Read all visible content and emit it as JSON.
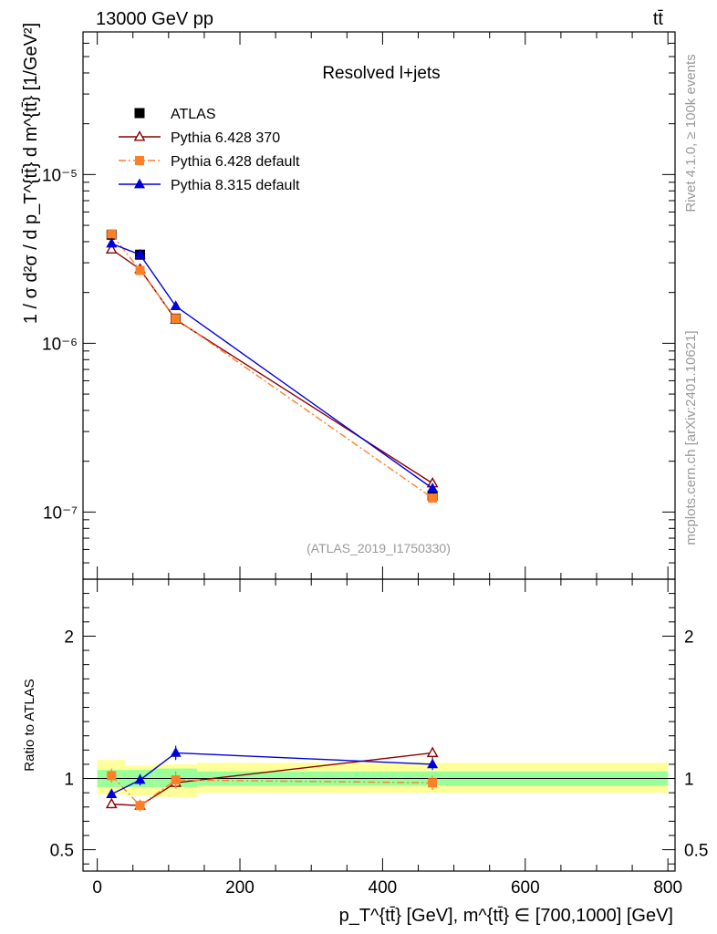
{
  "header": {
    "energy_label": "13000 GeV pp",
    "process_label": "tt̄"
  },
  "side_text": {
    "rivet": "Rivet 4.1.0, ≥ 100k events",
    "source": "mcplots.cern.ch [arXiv:2401.10621]"
  },
  "chart_data": [
    {
      "type": "line",
      "panel": "main",
      "title": "Resolved l+jets",
      "analysis_id": "(ATLAS_2019_I1750330)",
      "ylabel": "1 / σ d²σ / d p_T^{tt̄} d m^{tt̄} [1/GeV²]",
      "yscale": "log",
      "ylim": [
        4e-08,
        7e-05
      ],
      "y_ticks": [
        1e-07,
        1e-06,
        1e-05
      ],
      "y_tick_labels": [
        "10⁻⁷",
        "10⁻⁶",
        "10⁻⁵"
      ],
      "xlim": [
        -20,
        810
      ],
      "x": [
        20,
        60,
        110,
        470
      ],
      "legend_position": "top-left",
      "series": [
        {
          "name": "ATLAS",
          "color": "#000000",
          "marker": "square",
          "style": "points",
          "values": [
            4.4e-06,
            3.35e-06,
            1.4e-06,
            1.25e-07
          ]
        },
        {
          "name": "Pythia 6.428 370",
          "color": "#8b0000",
          "marker": "open-triangle",
          "style": "solid",
          "values": [
            3.6e-06,
            2.75e-06,
            1.38e-06,
            1.48e-07
          ]
        },
        {
          "name": "Pythia 6.428 default",
          "color": "#ff7f27",
          "marker": "square",
          "style": "dashdot",
          "values": [
            4.45e-06,
            2.7e-06,
            1.4e-06,
            1.21e-07
          ]
        },
        {
          "name": "Pythia 8.315 default",
          "color": "#0000dd",
          "marker": "triangle",
          "style": "solid",
          "values": [
            3.9e-06,
            3.35e-06,
            1.66e-06,
            1.38e-07
          ]
        }
      ]
    },
    {
      "type": "line",
      "panel": "ratio",
      "ylabel": "Ratio to ATLAS",
      "xlabel": "p_T^{tt̄} [GeV], m^{tt̄} ∈ [700,1000] [GeV]",
      "ylim": [
        0.35,
        2.4
      ],
      "y_ticks": [
        0.5,
        1,
        2
      ],
      "y_tick_labels": [
        "0.5",
        "1",
        "2"
      ],
      "x_ticks": [
        0,
        200,
        400,
        600,
        800
      ],
      "x_tick_labels": [
        "0",
        "200",
        "400",
        "600",
        "800"
      ],
      "bin_edges": [
        0,
        40,
        80,
        140,
        800
      ],
      "band_inner": [
        [
          0.94,
          1.06
        ],
        [
          0.94,
          1.06
        ],
        [
          0.94,
          1.07
        ],
        [
          0.95,
          1.05
        ]
      ],
      "band_outer": [
        [
          0.89,
          1.13
        ],
        [
          0.88,
          1.09
        ],
        [
          0.87,
          1.1
        ],
        [
          0.9,
          1.11
        ]
      ],
      "x": [
        20,
        60,
        110,
        470
      ],
      "series": [
        {
          "name": "Pythia 6.428 370",
          "color": "#8b0000",
          "marker": "open-triangle",
          "style": "solid",
          "values": [
            0.82,
            0.81,
            0.97,
            1.18
          ],
          "errors": [
            0.03,
            0.03,
            0.04,
            0.04
          ]
        },
        {
          "name": "Pythia 6.428 default",
          "color": "#ff7f27",
          "marker": "square",
          "style": "dashdot",
          "values": [
            1.02,
            0.81,
            0.99,
            0.97
          ],
          "errors": [
            0.05,
            0.04,
            0.06,
            0.05
          ]
        },
        {
          "name": "Pythia 8.315 default",
          "color": "#0000dd",
          "marker": "triangle",
          "style": "solid",
          "values": [
            0.89,
            0.99,
            1.18,
            1.1
          ],
          "errors": [
            0.03,
            0.04,
            0.05,
            0.04
          ]
        }
      ]
    }
  ]
}
